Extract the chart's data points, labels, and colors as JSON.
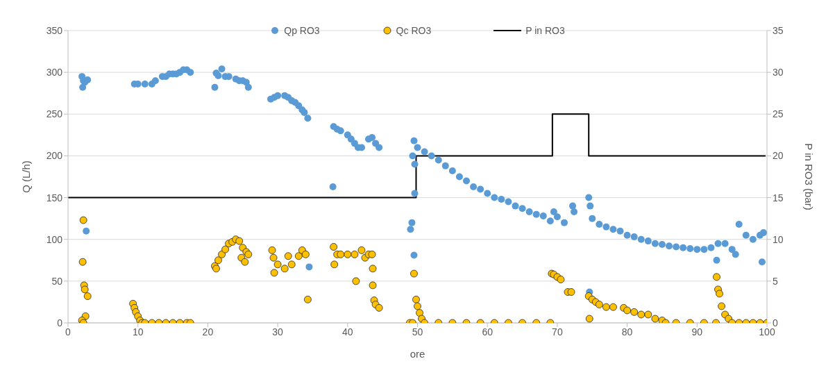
{
  "chart_data": {
    "type": "scatter",
    "xlabel": "ore",
    "ylabel": "Q  (L/h)",
    "y2label": "P in RO3 (bar)",
    "xlim": [
      0,
      100
    ],
    "xticks": [
      0,
      10,
      20,
      30,
      40,
      50,
      60,
      70,
      80,
      90,
      100
    ],
    "ylim": [
      0,
      350
    ],
    "yticks": [
      0,
      50,
      100,
      150,
      200,
      250,
      300,
      350
    ],
    "y2lim": [
      0,
      35
    ],
    "y2ticks": [
      0,
      5,
      10,
      15,
      20,
      25,
      30,
      35
    ],
    "grid": "y",
    "legend": "top",
    "series": [
      {
        "name": "Qp RO3",
        "marker": "circle",
        "color": "#5b9bd5",
        "x": [
          2,
          2.1,
          2.2,
          2.4,
          2.8,
          2.6,
          9.5,
          10,
          11,
          12,
          12.5,
          13.5,
          14,
          14.5,
          15,
          15.5,
          16,
          16.5,
          17,
          17.5,
          21,
          21.2,
          21.5,
          22,
          22.5,
          23,
          24,
          24.5,
          25,
          25.5,
          25.8,
          29,
          29.5,
          30,
          31,
          31.5,
          32,
          32.5,
          33,
          33.5,
          33.8,
          34.3,
          34.5,
          37.9,
          38,
          38.5,
          39,
          40,
          40.5,
          41,
          41.5,
          42,
          43,
          43.5,
          44,
          44.5,
          49,
          49.2,
          49.3,
          49.5,
          49.6,
          49.6,
          49.5,
          50,
          51,
          52,
          53,
          54,
          55,
          56,
          57,
          58,
          59,
          60,
          61,
          62,
          63,
          64,
          65,
          66,
          67,
          68,
          69,
          69.5,
          70,
          71,
          72.2,
          72.4,
          74.5,
          74.6,
          74.7,
          75,
          76,
          77,
          78,
          79,
          80,
          81,
          82,
          83,
          84,
          85,
          86,
          87,
          88,
          89,
          90,
          91,
          92,
          92.8,
          93,
          94,
          95,
          95.5,
          96,
          97,
          98,
          99,
          99.5,
          99.3
        ],
        "values": [
          295,
          282,
          290,
          288,
          291,
          110,
          286,
          286,
          286,
          286,
          290,
          295,
          295,
          298,
          298,
          298,
          300,
          303,
          303,
          300,
          282,
          299,
          296,
          304,
          295,
          295,
          292,
          290,
          290,
          288,
          282,
          268,
          270,
          272,
          272,
          270,
          266,
          264,
          260,
          255,
          252,
          245,
          67,
          163,
          235,
          232,
          230,
          225,
          220,
          215,
          210,
          210,
          220,
          222,
          215,
          210,
          112,
          120,
          200,
          218,
          190,
          155,
          81,
          210,
          205,
          200,
          195,
          188,
          182,
          175,
          170,
          163,
          160,
          155,
          150,
          148,
          145,
          140,
          137,
          133,
          130,
          128,
          122,
          133,
          127,
          120,
          140,
          133,
          150,
          37,
          140,
          125,
          118,
          115,
          112,
          110,
          105,
          103,
          100,
          98,
          95,
          94,
          92,
          91,
          90,
          89,
          88,
          88,
          90,
          75,
          95,
          95,
          88,
          82,
          118,
          105,
          100,
          105,
          108,
          73
        ]
      },
      {
        "name": "Qc RO3",
        "marker": "circle",
        "color": "#ffc000",
        "x": [
          2.1,
          2.2,
          2.3,
          2.4,
          2.5,
          2.8,
          2,
          2.2,
          9.3,
          9.5,
          9.7,
          10,
          10.3,
          10.6,
          11,
          12,
          13,
          14,
          15,
          16,
          17,
          17.5,
          21,
          21.2,
          21.5,
          22,
          22.5,
          23,
          23.5,
          24,
          24.5,
          24.8,
          25,
          25.3,
          25.5,
          25.8,
          29.2,
          29.4,
          29.5,
          30,
          31,
          31.5,
          32,
          33,
          33.5,
          34,
          34.3,
          38,
          38.1,
          38.5,
          39,
          40,
          41,
          41.2,
          42,
          42.5,
          43,
          43.5,
          43.6,
          43.6,
          43.8,
          44,
          44.5,
          48.9,
          49.3,
          49.5,
          49.8,
          50,
          50.3,
          50.6,
          51,
          53,
          55,
          57,
          59,
          61,
          63,
          65,
          67,
          69,
          69.2,
          69.5,
          70,
          70.5,
          71.5,
          72,
          74.5,
          74.6,
          75,
          75.5,
          76,
          77,
          78,
          79.5,
          80,
          81,
          82,
          83,
          84,
          85,
          85.5,
          87,
          89,
          91,
          92.7,
          92.8,
          93,
          93.2,
          93.5,
          94,
          94.5,
          95,
          96,
          97,
          98,
          99,
          100
        ],
        "values": [
          73,
          123,
          45,
          40,
          8,
          32,
          3,
          0,
          23,
          18,
          13,
          8,
          3,
          0,
          0,
          0,
          0,
          0,
          0,
          0,
          0,
          0,
          68,
          65,
          75,
          82,
          88,
          95,
          97,
          100,
          98,
          78,
          90,
          73,
          85,
          82,
          87,
          78,
          60,
          70,
          65,
          80,
          70,
          80,
          87,
          82,
          28,
          91,
          70,
          82,
          82,
          82,
          82,
          50,
          87,
          78,
          82,
          82,
          65,
          45,
          27,
          22,
          18,
          0,
          0,
          59,
          28,
          20,
          12,
          5,
          0,
          0,
          0,
          0,
          0,
          0,
          0,
          0,
          0,
          0,
          59,
          58,
          55,
          52,
          37,
          37,
          32,
          5,
          28,
          25,
          22,
          19,
          19,
          18,
          15,
          13,
          10,
          10,
          5,
          3,
          0,
          0,
          0,
          0,
          0,
          55,
          40,
          35,
          20,
          10,
          5,
          0,
          0,
          0,
          0,
          0,
          0
        ]
      },
      {
        "name": "P in RO3",
        "type": "step",
        "axis": "y2",
        "color": "#000000",
        "marker": "none",
        "x": [
          0,
          49.8,
          69.3,
          74.5,
          99.8
        ],
        "values": [
          15,
          20,
          25,
          20,
          20
        ]
      }
    ]
  }
}
